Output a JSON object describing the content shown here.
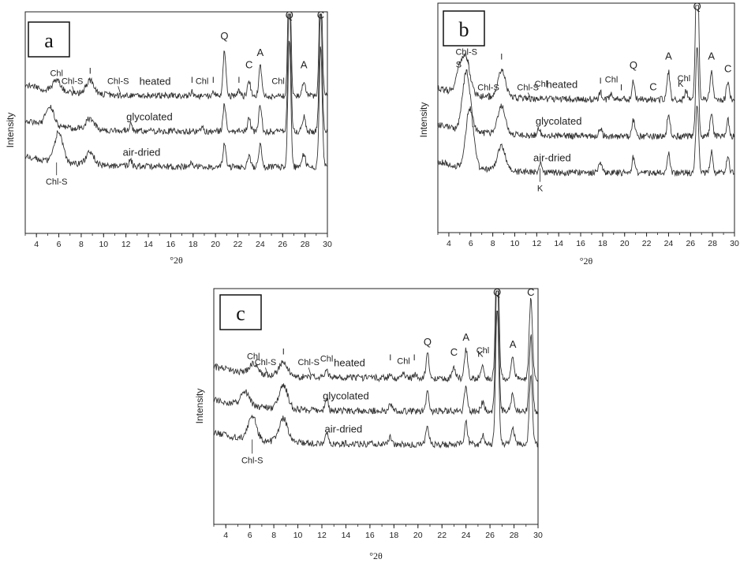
{
  "chart_data": [
    {
      "type": "line",
      "panel_label": "a",
      "xlabel": "°2θ",
      "ylabel": "Intensity",
      "xlim": [
        3,
        30
      ],
      "x_ticks": [
        4,
        6,
        8,
        10,
        12,
        14,
        16,
        18,
        20,
        22,
        24,
        26,
        28,
        30
      ],
      "series": [
        {
          "name": "heated",
          "offset": 0.62,
          "peaks": [
            [
              5.8,
              0.05
            ],
            [
              8.8,
              0.06
            ],
            [
              17.9,
              0.02
            ],
            [
              19.8,
              0.02
            ],
            [
              20.8,
              0.2
            ],
            [
              22.1,
              0.02
            ],
            [
              23.0,
              0.07
            ],
            [
              24.0,
              0.14
            ],
            [
              26.6,
              0.62
            ],
            [
              27.9,
              0.07
            ],
            [
              29.4,
              0.58
            ]
          ]
        },
        {
          "name": "glycolated",
          "offset": 0.46,
          "peaks": [
            [
              5.2,
              0.09
            ],
            [
              8.8,
              0.05
            ],
            [
              12.4,
              0.03
            ],
            [
              18.8,
              0.02
            ],
            [
              20.8,
              0.12
            ],
            [
              23.0,
              0.06
            ],
            [
              24.0,
              0.12
            ],
            [
              26.6,
              0.6
            ],
            [
              27.9,
              0.07
            ],
            [
              29.4,
              0.56
            ]
          ]
        },
        {
          "name": "air-dried",
          "offset": 0.3,
          "peaks": [
            [
              6.0,
              0.14
            ],
            [
              8.8,
              0.06
            ],
            [
              12.4,
              0.03
            ],
            [
              17.8,
              0.02
            ],
            [
              20.8,
              0.1
            ],
            [
              23.0,
              0.05
            ],
            [
              24.0,
              0.11
            ],
            [
              26.6,
              0.58
            ],
            [
              27.9,
              0.06
            ],
            [
              29.4,
              0.54
            ]
          ]
        }
      ],
      "annotations": [
        {
          "text": "Chl",
          "x": 5.8,
          "arrow": true
        },
        {
          "text": "Chl-S",
          "x": 7.2,
          "arrow": true
        },
        {
          "text": "I",
          "x": 8.8
        },
        {
          "text": "Chl-S",
          "x": 11.3,
          "arrow": true
        },
        {
          "text": "I",
          "x": 17.9
        },
        {
          "text": "Chl",
          "x": 18.8
        },
        {
          "text": "I",
          "x": 19.8
        },
        {
          "text": "Q",
          "x": 20.8
        },
        {
          "text": "I",
          "x": 22.1
        },
        {
          "text": "C",
          "x": 23.0
        },
        {
          "text": "A",
          "x": 24.0
        },
        {
          "text": "Chl",
          "x": 25.6
        },
        {
          "text": "Q",
          "x": 26.6
        },
        {
          "text": "A",
          "x": 27.9
        },
        {
          "text": "C",
          "x": 29.4
        },
        {
          "text": "Chl-S",
          "x": 5.8,
          "below": true
        }
      ]
    },
    {
      "type": "line",
      "panel_label": "b",
      "xlabel": "°2θ",
      "ylabel": "Intensity",
      "xlim": [
        3,
        30
      ],
      "x_ticks": [
        4,
        6,
        8,
        10,
        12,
        14,
        16,
        18,
        20,
        22,
        24,
        26,
        28,
        30
      ],
      "series": [
        {
          "name": "heated",
          "offset": 0.58,
          "peaks": [
            [
              5.0,
              0.1
            ],
            [
              5.6,
              0.14
            ],
            [
              8.8,
              0.12
            ],
            [
              17.8,
              0.03
            ],
            [
              18.8,
              0.02
            ],
            [
              20.8,
              0.08
            ],
            [
              24.0,
              0.12
            ],
            [
              25.6,
              0.04
            ],
            [
              26.6,
              0.72
            ],
            [
              27.9,
              0.12
            ],
            [
              29.4,
              0.08
            ]
          ]
        },
        {
          "name": "glycolated",
          "offset": 0.42,
          "peaks": [
            [
              5.6,
              0.26
            ],
            [
              8.8,
              0.12
            ],
            [
              12.2,
              0.03
            ],
            [
              17.8,
              0.04
            ],
            [
              20.8,
              0.07
            ],
            [
              24.0,
              0.1
            ],
            [
              26.6,
              0.4
            ],
            [
              27.9,
              0.1
            ],
            [
              29.4,
              0.07
            ]
          ]
        },
        {
          "name": "air-dried",
          "offset": 0.26,
          "peaks": [
            [
              5.9,
              0.26
            ],
            [
              8.8,
              0.11
            ],
            [
              12.3,
              0.04
            ],
            [
              17.8,
              0.05
            ],
            [
              20.8,
              0.07
            ],
            [
              24.0,
              0.09
            ],
            [
              26.6,
              0.3
            ],
            [
              27.9,
              0.09
            ],
            [
              29.4,
              0.07
            ]
          ]
        }
      ],
      "annotations": [
        {
          "text": "S",
          "x": 4.9
        },
        {
          "text": "Chl-S",
          "x": 5.6,
          "arrow": true
        },
        {
          "text": "Chl-S",
          "x": 7.6,
          "arrow": true
        },
        {
          "text": "I",
          "x": 8.8
        },
        {
          "text": "Chl-S",
          "x": 11.2,
          "arrow": true
        },
        {
          "text": "Chl",
          "x": 12.4
        },
        {
          "text": "I",
          "x": 17.8
        },
        {
          "text": "Chl",
          "x": 18.8
        },
        {
          "text": "I",
          "x": 19.7
        },
        {
          "text": "Q",
          "x": 20.8
        },
        {
          "text": "C",
          "x": 22.6
        },
        {
          "text": "A",
          "x": 24.0
        },
        {
          "text": "Chl",
          "x": 25.4
        },
        {
          "text": "K",
          "x": 25.1
        },
        {
          "text": "Q",
          "x": 26.6
        },
        {
          "text": "A",
          "x": 27.9
        },
        {
          "text": "C",
          "x": 29.4
        },
        {
          "text": "K",
          "x": 12.3,
          "below": true
        }
      ]
    },
    {
      "type": "line",
      "panel_label": "c",
      "xlabel": "°2θ",
      "ylabel": "Intensity",
      "xlim": [
        3,
        30
      ],
      "x_ticks": [
        4,
        6,
        8,
        10,
        12,
        14,
        16,
        18,
        20,
        22,
        24,
        26,
        28,
        30
      ],
      "series": [
        {
          "name": "heated",
          "offset": 0.62,
          "peaks": [
            [
              6.3,
              0.04
            ],
            [
              8.8,
              0.06
            ],
            [
              12.4,
              0.03
            ],
            [
              17.7,
              0.02
            ],
            [
              18.8,
              0.02
            ],
            [
              19.8,
              0.02
            ],
            [
              20.8,
              0.1
            ],
            [
              23.0,
              0.04
            ],
            [
              24.0,
              0.12
            ],
            [
              25.4,
              0.05
            ],
            [
              26.6,
              0.62
            ],
            [
              27.9,
              0.09
            ],
            [
              29.4,
              0.34
            ]
          ]
        },
        {
          "name": "glycolated",
          "offset": 0.48,
          "peaks": [
            [
              5.6,
              0.06
            ],
            [
              8.8,
              0.1
            ],
            [
              12.4,
              0.05
            ],
            [
              17.7,
              0.03
            ],
            [
              20.8,
              0.08
            ],
            [
              24.0,
              0.1
            ],
            [
              25.4,
              0.04
            ],
            [
              26.6,
              0.6
            ],
            [
              27.9,
              0.08
            ],
            [
              29.4,
              0.32
            ]
          ]
        },
        {
          "name": "air-dried",
          "offset": 0.34,
          "peaks": [
            [
              6.2,
              0.1
            ],
            [
              8.8,
              0.1
            ],
            [
              12.4,
              0.05
            ],
            [
              17.7,
              0.03
            ],
            [
              20.8,
              0.07
            ],
            [
              24.0,
              0.09
            ],
            [
              25.4,
              0.04
            ],
            [
              26.6,
              0.58
            ],
            [
              27.9,
              0.07
            ],
            [
              29.4,
              0.3
            ]
          ]
        }
      ],
      "annotations": [
        {
          "text": "Chl",
          "x": 6.3
        },
        {
          "text": "Chl-S",
          "x": 7.3,
          "arrow": true
        },
        {
          "text": "I",
          "x": 8.8
        },
        {
          "text": "Chl-S",
          "x": 10.9,
          "arrow": true
        },
        {
          "text": "Chl",
          "x": 12.4
        },
        {
          "text": "I",
          "x": 17.7
        },
        {
          "text": "Chl",
          "x": 18.8
        },
        {
          "text": "I",
          "x": 19.7
        },
        {
          "text": "Q",
          "x": 20.8
        },
        {
          "text": "C",
          "x": 23.0
        },
        {
          "text": "A",
          "x": 24.0
        },
        {
          "text": "Chl",
          "x": 25.4
        },
        {
          "text": "K",
          "x": 25.2
        },
        {
          "text": "Q",
          "x": 26.6
        },
        {
          "text": "A",
          "x": 27.9
        },
        {
          "text": "C",
          "x": 29.4
        },
        {
          "text": "Chl-S",
          "x": 6.2,
          "below": true
        }
      ]
    }
  ]
}
